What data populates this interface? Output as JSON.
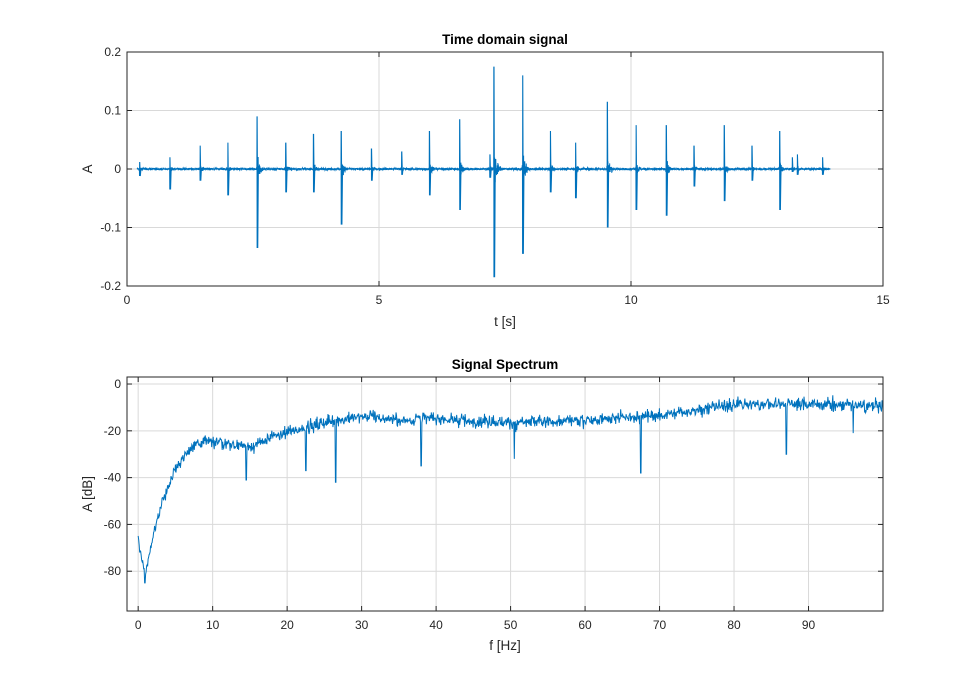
{
  "colors": {
    "series": "#0072bd",
    "grid": "#d9d9d9",
    "axis": "#262626"
  },
  "chart_data": [
    {
      "type": "line",
      "title": "Time domain signal",
      "xlabel": "t [s]",
      "ylabel": "A",
      "xlim": [
        0,
        15
      ],
      "ylim": [
        -0.2,
        0.2
      ],
      "xticks": [
        0,
        5,
        10,
        15
      ],
      "xtick_labels": [
        "0",
        "5",
        "10",
        "15"
      ],
      "yticks": [
        -0.2,
        -0.1,
        0,
        0.1,
        0.2
      ],
      "ytick_labels": [
        "-0.2",
        "-0.1",
        "0",
        "0.1",
        "0.2"
      ],
      "grid": true,
      "noise_floor": 0.003,
      "bursts": [
        {
          "t": 0.25,
          "pos": 0.012,
          "neg": -0.012
        },
        {
          "t": 0.85,
          "pos": 0.02,
          "neg": -0.035
        },
        {
          "t": 1.45,
          "pos": 0.04,
          "neg": -0.02
        },
        {
          "t": 2.0,
          "pos": 0.045,
          "neg": -0.045
        },
        {
          "t": 2.58,
          "pos": 0.09,
          "neg": -0.135
        },
        {
          "t": 3.15,
          "pos": 0.045,
          "neg": -0.04
        },
        {
          "t": 3.7,
          "pos": 0.06,
          "neg": -0.04
        },
        {
          "t": 4.25,
          "pos": 0.065,
          "neg": -0.095
        },
        {
          "t": 4.85,
          "pos": 0.035,
          "neg": -0.02
        },
        {
          "t": 5.45,
          "pos": 0.03,
          "neg": -0.01
        },
        {
          "t": 6.0,
          "pos": 0.065,
          "neg": -0.045
        },
        {
          "t": 6.6,
          "pos": 0.085,
          "neg": -0.07
        },
        {
          "t": 7.2,
          "pos": 0.025,
          "neg": -0.015
        },
        {
          "t": 7.28,
          "pos": 0.175,
          "neg": -0.185
        },
        {
          "t": 7.85,
          "pos": 0.16,
          "neg": -0.145
        },
        {
          "t": 8.4,
          "pos": 0.065,
          "neg": -0.04
        },
        {
          "t": 8.9,
          "pos": 0.045,
          "neg": -0.05
        },
        {
          "t": 9.53,
          "pos": 0.115,
          "neg": -0.1
        },
        {
          "t": 10.1,
          "pos": 0.075,
          "neg": -0.07
        },
        {
          "t": 10.7,
          "pos": 0.075,
          "neg": -0.08
        },
        {
          "t": 11.25,
          "pos": 0.04,
          "neg": -0.03
        },
        {
          "t": 11.85,
          "pos": 0.075,
          "neg": -0.055
        },
        {
          "t": 12.4,
          "pos": 0.04,
          "neg": -0.02
        },
        {
          "t": 12.95,
          "pos": 0.065,
          "neg": -0.07
        },
        {
          "t": 13.2,
          "pos": 0.02,
          "neg": -0.005
        },
        {
          "t": 13.3,
          "pos": 0.025,
          "neg": -0.01
        },
        {
          "t": 13.8,
          "pos": 0.02,
          "neg": -0.01
        }
      ]
    },
    {
      "type": "line",
      "title": "Signal Spectrum",
      "xlabel": "f [Hz]",
      "ylabel": "A [dB]",
      "xlim": [
        -1.5,
        100
      ],
      "ylim": [
        -97,
        3
      ],
      "xticks": [
        0,
        10,
        20,
        30,
        40,
        50,
        60,
        70,
        80,
        90
      ],
      "xtick_labels": [
        "0",
        "10",
        "20",
        "30",
        "40",
        "50",
        "60",
        "70",
        "80",
        "90"
      ],
      "yticks": [
        -80,
        -60,
        -40,
        -20,
        0
      ],
      "ytick_labels": [
        "-80",
        "-60",
        "-40",
        "-20",
        "0"
      ],
      "grid": true,
      "envelope": {
        "f": [
          0,
          0.5,
          1,
          2,
          3,
          4,
          5,
          7,
          9,
          12,
          15,
          20,
          25,
          30,
          35,
          40,
          50,
          60,
          70,
          80,
          90,
          100
        ],
        "db": [
          -65,
          -75,
          -80,
          -65,
          -52,
          -44,
          -35,
          -27,
          -24,
          -25,
          -26,
          -20,
          -16,
          -13,
          -15,
          -14,
          -16,
          -15,
          -13,
          -8,
          -8,
          -9
        ]
      },
      "dips": [
        {
          "f": 0.9,
          "db": -85
        },
        {
          "f": 14.5,
          "db": -41
        },
        {
          "f": 22.5,
          "db": -37
        },
        {
          "f": 26.5,
          "db": -42
        },
        {
          "f": 38,
          "db": -35
        },
        {
          "f": 50.5,
          "db": -32
        },
        {
          "f": 67.5,
          "db": -38
        },
        {
          "f": 87,
          "db": -30
        },
        {
          "f": 96,
          "db": -21
        }
      ]
    }
  ]
}
